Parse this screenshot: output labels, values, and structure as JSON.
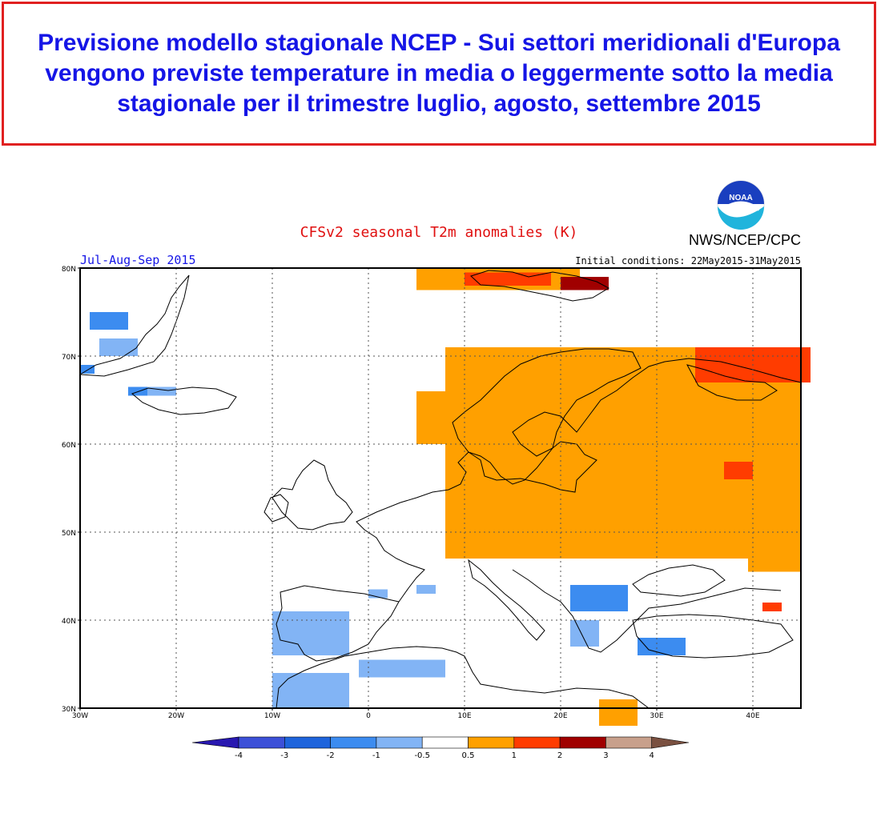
{
  "headline": "Previsione modello stagionale NCEP - Sui settori meridionali d'Europa vengono previste temperature in media o leggermente sotto la media stagionale per il trimestre luglio, agosto, settembre 2015",
  "map": {
    "title": "CFSv2 seasonal T2m anomalies (K)",
    "period": "Jul-Aug-Sep 2015",
    "initial_conditions": "Initial conditions: 22May2015-31May2015",
    "agency": "NWS/NCEP/CPC",
    "logo_text": "NOAA",
    "lat_labels": [
      "80N",
      "70N",
      "60N",
      "50N",
      "40N",
      "30N"
    ],
    "lon_labels": [
      "30W",
      "20W",
      "10W",
      "0",
      "10E",
      "20E",
      "30E",
      "40E"
    ],
    "extent": {
      "lon_min": -30,
      "lon_max": 45,
      "lat_min": 30,
      "lat_max": 80
    }
  },
  "colorbar": {
    "tick_labels": [
      "-4",
      "-3",
      "-2",
      "-1",
      "-0.5",
      "0.5",
      "1",
      "2",
      "3",
      "4"
    ],
    "colors": [
      "#2818b0",
      "#3c50d8",
      "#1e64dc",
      "#3c8cf0",
      "#82b4f5",
      "#ffffff",
      "#ffa000",
      "#ff3c00",
      "#a00000",
      "#c8a08c",
      "#7a5040"
    ]
  },
  "anomaly_colors": {
    "cold_strong": "#1e64dc",
    "cold_moderate": "#3c8cf0",
    "cold_weak": "#82b4f5",
    "warm_weak": "#ffa000",
    "warm_moderate": "#ff3c00",
    "warm_strong": "#a00000"
  }
}
